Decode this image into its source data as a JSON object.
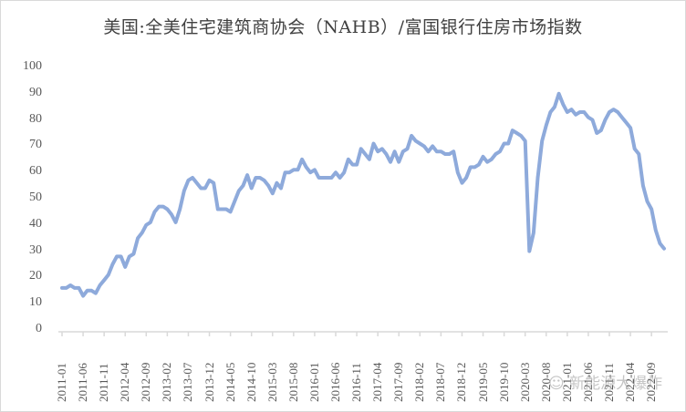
{
  "chart_data": {
    "type": "line",
    "title": "美国:全美住宅建筑商协会（NAHB）/富国银行住房市场指数",
    "xlabel": "",
    "ylabel": "",
    "ylim": [
      0,
      100
    ],
    "yticks": [
      0,
      10,
      20,
      30,
      40,
      50,
      60,
      70,
      80,
      90,
      100
    ],
    "grid": false,
    "legend": null,
    "xtick_labels": [
      "2011-01",
      "2011-06",
      "2011-11",
      "2012-04",
      "2012-09",
      "2013-02",
      "2013-07",
      "2013-12",
      "2014-05",
      "2014-10",
      "2015-03",
      "2015-08",
      "2016-01",
      "2016-06",
      "2016-11",
      "2017-04",
      "2017-09",
      "2018-02",
      "2018-07",
      "2018-12",
      "2019-05",
      "2019-10",
      "2020-03",
      "2020-08",
      "2021-01",
      "2021-06",
      "2021-11",
      "2022-04",
      "2022-09"
    ],
    "x_start": "2011-01",
    "x_end": "2022-12",
    "line_color": "#8eaadb",
    "series": [
      {
        "name": "NAHB/富国银行住房市场指数",
        "values": [
          16,
          16,
          17,
          16,
          16,
          13,
          15,
          15,
          14,
          17,
          19,
          21,
          25,
          28,
          28,
          24,
          28,
          29,
          35,
          37,
          40,
          41,
          45,
          47,
          47,
          46,
          44,
          41,
          46,
          53,
          57,
          58,
          56,
          54,
          54,
          57,
          56,
          46,
          46,
          46,
          45,
          49,
          53,
          55,
          59,
          54,
          58,
          58,
          57,
          55,
          52,
          56,
          54,
          60,
          60,
          61,
          61,
          65,
          62,
          60,
          61,
          58,
          58,
          58,
          58,
          60,
          58,
          60,
          65,
          63,
          63,
          69,
          67,
          65,
          71,
          68,
          69,
          67,
          64,
          68,
          64,
          68,
          69,
          74,
          72,
          71,
          70,
          68,
          70,
          68,
          68,
          67,
          67,
          68,
          60,
          56,
          58,
          62,
          62,
          63,
          66,
          64,
          65,
          67,
          68,
          71,
          71,
          76,
          75,
          74,
          72,
          30,
          37,
          58,
          72,
          78,
          83,
          85,
          90,
          86,
          83,
          84,
          82,
          83,
          83,
          81,
          80,
          75,
          76,
          80,
          83,
          84,
          83,
          81,
          79,
          77,
          69,
          67,
          55,
          49,
          46,
          38,
          33,
          31
        ]
      }
    ]
  },
  "watermark": {
    "text": "新能源大爆炸",
    "icon": "wechat-icon"
  }
}
